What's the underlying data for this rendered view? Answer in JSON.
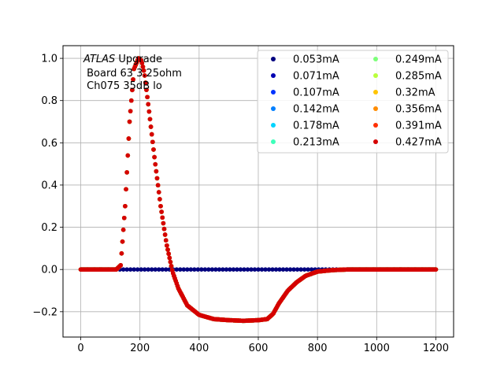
{
  "chart_data": {
    "type": "scatter",
    "title": "",
    "xlabel": "",
    "ylabel": "",
    "xlim": [
      -60,
      1260
    ],
    "ylim": [
      -0.32,
      1.06
    ],
    "x_ticks": [
      0,
      200,
      400,
      600,
      800,
      1000,
      1200
    ],
    "y_ticks": [
      -0.2,
      0.0,
      0.2,
      0.4,
      0.6,
      0.8,
      1.0
    ],
    "x_tick_labels": [
      "0",
      "200",
      "400",
      "600",
      "800",
      "1000",
      "1200"
    ],
    "y_tick_labels": [
      "−0.2",
      "0.0",
      "0.2",
      "0.4",
      "0.6",
      "0.8",
      "1.0"
    ],
    "grid": true,
    "legend_position": "top-right",
    "legend_columns": 2,
    "annotation": {
      "line1_italic": "ATLAS",
      "line1_rest": " Upgrade",
      "line2": " Board 63 3.25ohm",
      "line3": " Ch075 35dB lo"
    },
    "pulse_shape": {
      "x": [
        0,
        120,
        135,
        150,
        165,
        180,
        195,
        205,
        215,
        230,
        250,
        270,
        290,
        310,
        330,
        360,
        400,
        450,
        500,
        550,
        600,
        630,
        650,
        670,
        700,
        730,
        760,
        800,
        850,
        900,
        1000,
        1100,
        1200
      ],
      "y": [
        0,
        0,
        0.02,
        0.3,
        0.7,
        0.95,
        1.0,
        0.99,
        0.93,
        0.76,
        0.52,
        0.3,
        0.12,
        -0.01,
        -0.09,
        -0.17,
        -0.215,
        -0.235,
        -0.24,
        -0.243,
        -0.24,
        -0.235,
        -0.21,
        -0.16,
        -0.1,
        -0.06,
        -0.03,
        -0.01,
        -0.003,
        0,
        0,
        0,
        0
      ]
    },
    "series": [
      {
        "name": "0.053mA",
        "color": "#00007f",
        "profile": "flat"
      },
      {
        "name": "0.071mA",
        "color": "#0000b2",
        "profile": "pulse"
      },
      {
        "name": "0.107mA",
        "color": "#0033ff",
        "profile": "pulse"
      },
      {
        "name": "0.142mA",
        "color": "#007fff",
        "profile": "pulse"
      },
      {
        "name": "0.178mA",
        "color": "#00d4ff",
        "profile": "pulse"
      },
      {
        "name": "0.213mA",
        "color": "#3dffba",
        "profile": "pulse"
      },
      {
        "name": "0.249mA",
        "color": "#7dff7a",
        "profile": "pulse"
      },
      {
        "name": "0.285mA",
        "color": "#baff3c",
        "profile": "pulse"
      },
      {
        "name": "0.32mA",
        "color": "#ffc400",
        "profile": "pulse"
      },
      {
        "name": "0.356mA",
        "color": "#ff8c00",
        "profile": "pulse"
      },
      {
        "name": "0.391mA",
        "color": "#ff3000",
        "profile": "pulse"
      },
      {
        "name": "0.427mA",
        "color": "#d50000",
        "profile": "pulse"
      }
    ]
  }
}
